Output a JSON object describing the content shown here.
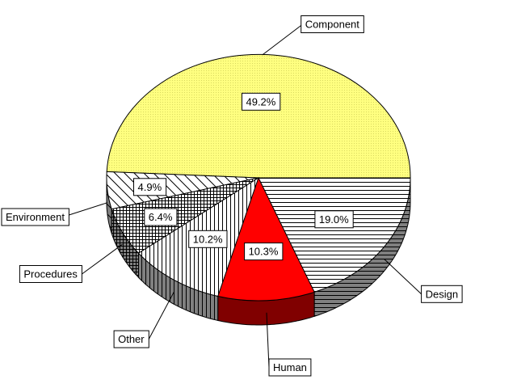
{
  "chart_data": {
    "type": "pie",
    "three_d": true,
    "title": "",
    "slices": [
      {
        "category": "Component",
        "value": 49.2,
        "label": "49.2%",
        "color": "#ffff80",
        "pattern": "dots"
      },
      {
        "category": "Environment",
        "value": 4.9,
        "label": "4.9%",
        "color": "#ffffff",
        "pattern": "diagonal"
      },
      {
        "category": "Procedures",
        "value": 6.4,
        "label": "6.4%",
        "color": "#ffffff",
        "pattern": "grid"
      },
      {
        "category": "Other",
        "value": 10.2,
        "label": "10.2%",
        "color": "#ffffff",
        "pattern": "vertical"
      },
      {
        "category": "Human",
        "value": 10.3,
        "label": "10.3%",
        "color": "#ff0000",
        "pattern": "solid"
      },
      {
        "category": "Design",
        "value": 19.0,
        "label": "19.0%",
        "color": "#ffffff",
        "pattern": "horizontal"
      }
    ]
  }
}
